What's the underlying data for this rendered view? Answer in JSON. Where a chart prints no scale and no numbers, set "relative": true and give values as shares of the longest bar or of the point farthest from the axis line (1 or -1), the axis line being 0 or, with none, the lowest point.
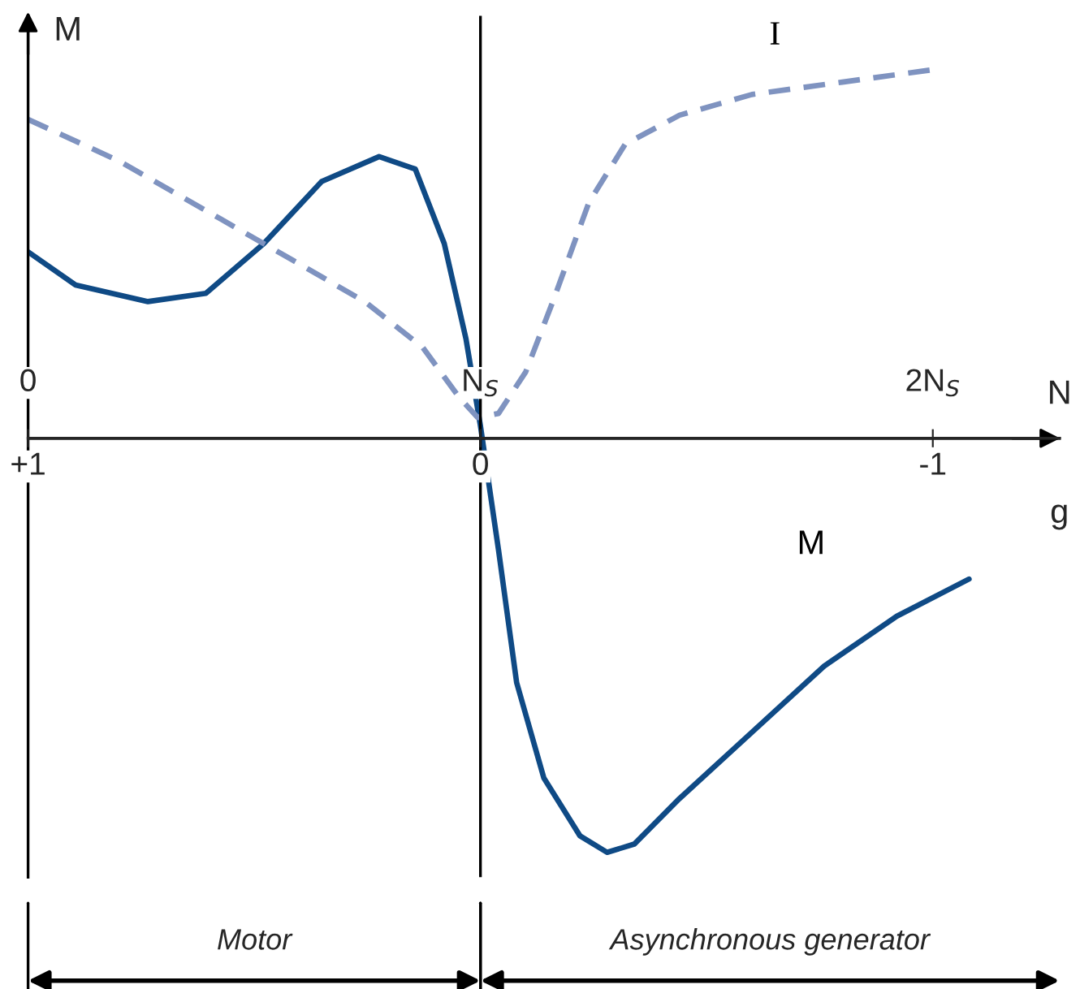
{
  "chart_data": {
    "type": "line",
    "relative": true,
    "xlabel": "g",
    "ylabel": "M",
    "x2label": "N",
    "xlim": [
      1,
      -1.28
    ],
    "xticks": [
      {
        "value": 1,
        "label": "+1"
      },
      0,
      -1
    ],
    "x2lim": [
      0,
      2.28
    ],
    "x2ticks": [
      0,
      {
        "value": 1,
        "label": "N$_{S}$"
      },
      {
        "value": 2,
        "label": "2N$_{S}$"
      }
    ],
    "series": [
      {
        "name": "M",
        "color": "#0f4a85",
        "line_style": "solid",
        "x": [
          1,
          0.895,
          0.735,
          0.607,
          0.479,
          0.351,
          0.224,
          0.144,
          0.08,
          0.032,
          0,
          -0.04,
          -0.08,
          -0.14,
          -0.22,
          -0.28,
          -0.34,
          -0.44,
          -0.6,
          -0.76,
          -0.92,
          -1.08
        ],
        "values": [
          0.45,
          0.37,
          0.33,
          0.35,
          0.47,
          0.62,
          0.68,
          0.65,
          0.47,
          0.24,
          0.03,
          -0.27,
          -0.59,
          -0.82,
          -0.96,
          -1.0,
          -0.98,
          -0.87,
          -0.71,
          -0.55,
          -0.43,
          -0.34
        ]
      },
      {
        "name": "I",
        "color": "#7f93c0",
        "line_style": "dashed",
        "x": [
          1,
          0.8,
          0.575,
          0.415,
          0.256,
          0.128,
          0.048,
          0.006,
          -0.04,
          -0.1,
          -0.16,
          -0.24,
          -0.32,
          -0.44,
          -0.6,
          -0.8,
          -1.0
        ],
        "values": [
          0.77,
          0.67,
          0.53,
          0.43,
          0.33,
          0.22,
          0.1,
          0.05,
          0.06,
          0.16,
          0.33,
          0.57,
          0.71,
          0.78,
          0.83,
          0.86,
          0.89
        ]
      }
    ],
    "ref_lines": [
      {
        "axis": "x",
        "value": 0,
        "color": "#000000"
      }
    ],
    "annotations": [
      "Motor",
      "Asynchronous generator"
    ],
    "legend": false,
    "grid": false
  }
}
